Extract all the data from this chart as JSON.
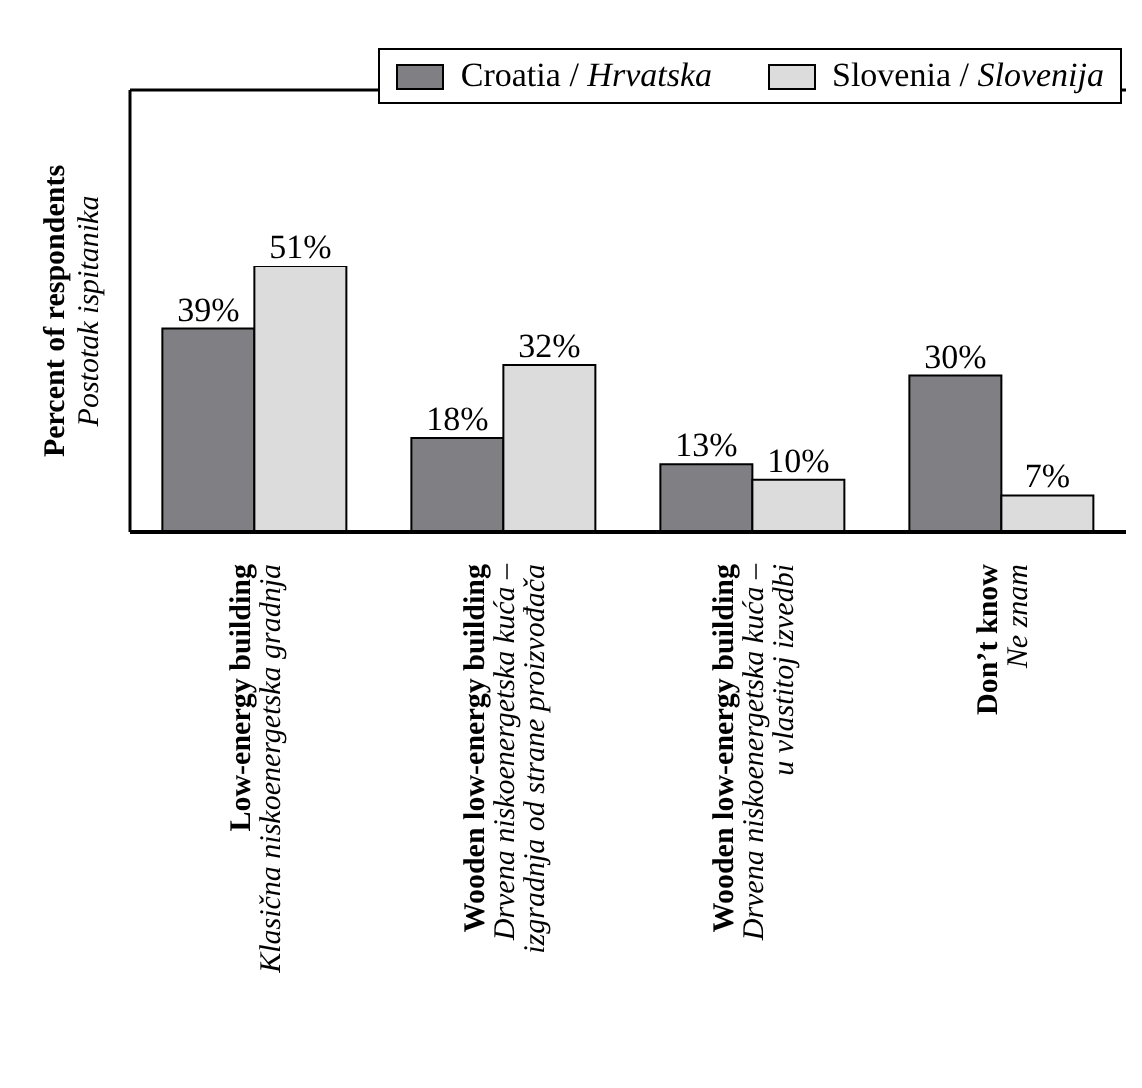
{
  "chart_data": {
    "type": "bar",
    "categories": [
      "Low-energy building\nKlasična niskoenergetska gradnja",
      "Wooden low-energy building\nDrvena  niskoenergetska kuća –\nizgradnja od strane proizvođača",
      "Wooden low-energy building\nDrvena niskoenergetska kuća –\nu vlastitoj izvedbi",
      "Don’t know\nNe znam"
    ],
    "series": [
      {
        "name": "Croatia / Hrvatska",
        "color": "#808084",
        "values": [
          39,
          18,
          13,
          30
        ],
        "value_labels": [
          "39%",
          "18%",
          "13%",
          "30%"
        ]
      },
      {
        "name": "Slovenia / Slovenija",
        "color": "#dcdcdc",
        "values": [
          51,
          32,
          10,
          7
        ],
        "value_labels": [
          "51%",
          "32%",
          "10%",
          "7%"
        ]
      }
    ],
    "ylabel": "Percent of respondents\nPostotak ispitanika",
    "tick_labels": "x",
    "legend": "top right",
    "grid": false
  }
}
